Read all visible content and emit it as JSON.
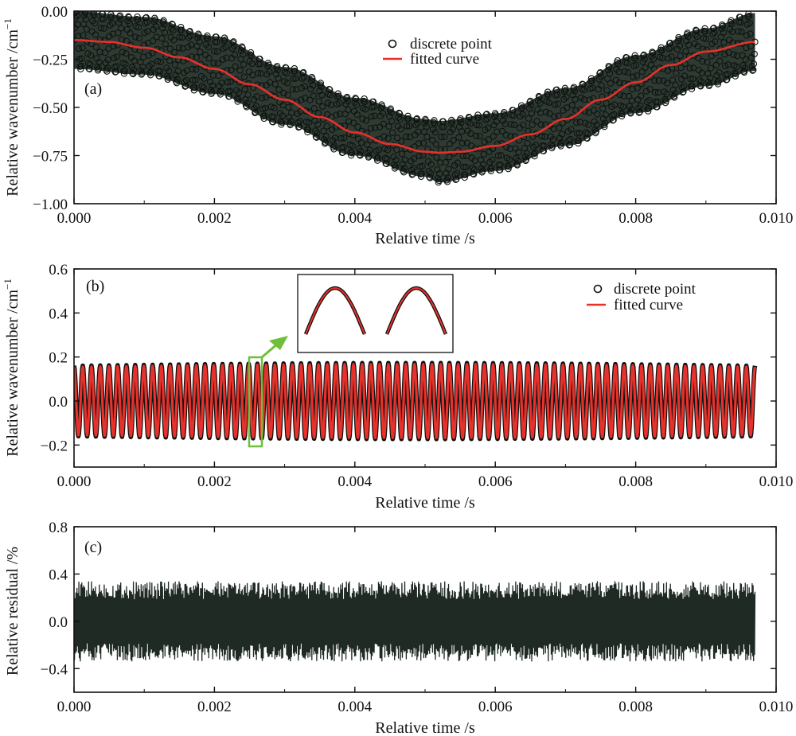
{
  "chart_data": [
    {
      "type": "scatter",
      "panel": "(a)",
      "xlabel": "Relative time /s",
      "ylabel": "Relative wavenumber /cm",
      "ylabel_sup": "−1",
      "xlim": [
        0,
        0.01
      ],
      "ylim": [
        -1.0,
        0.0
      ],
      "xticks": [
        0,
        0.002,
        0.004,
        0.006,
        0.008,
        0.01
      ],
      "xtick_labels": [
        "0.000",
        "0.002",
        "0.004",
        "0.006",
        "0.008",
        "0.010"
      ],
      "yticks": [
        0.0,
        -0.25,
        -0.5,
        -0.75,
        -1.0
      ],
      "ytick_labels": [
        "0.00",
        "−0.25",
        "−0.50",
        "−0.75",
        "−1.00"
      ],
      "legend": [
        "discrete point",
        "fitted curve"
      ],
      "legend_position": "top-center",
      "series": [
        {
          "name": "discrete point",
          "kind": "scatter-band",
          "color": "#1f2a24",
          "x": [
            0,
            0.001,
            0.002,
            0.003,
            0.004,
            0.005,
            0.0052,
            0.006,
            0.007,
            0.008,
            0.009,
            0.0097
          ],
          "y_upper": [
            0.0,
            -0.03,
            -0.13,
            -0.29,
            -0.45,
            -0.56,
            -0.57,
            -0.53,
            -0.4,
            -0.23,
            -0.09,
            -0.01
          ],
          "y_lower": [
            -0.3,
            -0.33,
            -0.43,
            -0.59,
            -0.75,
            -0.86,
            -0.89,
            -0.83,
            -0.7,
            -0.53,
            -0.39,
            -0.31
          ]
        },
        {
          "name": "fitted curve",
          "kind": "line",
          "color": "#e8312b",
          "x": [
            0,
            0.0005,
            0.001,
            0.0015,
            0.002,
            0.0025,
            0.003,
            0.0035,
            0.004,
            0.0045,
            0.005,
            0.0052,
            0.0055,
            0.006,
            0.0065,
            0.007,
            0.0075,
            0.008,
            0.0085,
            0.009,
            0.0097
          ],
          "y": [
            -0.15,
            -0.16,
            -0.19,
            -0.24,
            -0.3,
            -0.38,
            -0.46,
            -0.55,
            -0.63,
            -0.69,
            -0.73,
            -0.735,
            -0.73,
            -0.7,
            -0.64,
            -0.56,
            -0.46,
            -0.37,
            -0.28,
            -0.21,
            -0.16
          ]
        }
      ]
    },
    {
      "type": "line",
      "panel": "(b)",
      "xlabel": "Relative time /s",
      "ylabel": "Relative wavenumber /cm",
      "ylabel_sup": "−1",
      "xlim": [
        0,
        0.01
      ],
      "ylim": [
        -0.3,
        0.6
      ],
      "xticks": [
        0,
        0.002,
        0.004,
        0.006,
        0.008,
        0.01
      ],
      "xtick_labels": [
        "0.000",
        "0.002",
        "0.004",
        "0.006",
        "0.008",
        "0.010"
      ],
      "yticks": [
        -0.2,
        0.0,
        0.2,
        0.4,
        0.6
      ],
      "ytick_labels": [
        "−0.2",
        "0.0",
        "0.2",
        "0.4",
        "0.6"
      ],
      "legend": [
        "discrete point",
        "fitted curve"
      ],
      "legend_position": "top-right",
      "series": [
        {
          "name": "discrete point",
          "kind": "oscillation",
          "color": "#1f2a24",
          "x_start": 0,
          "x_end": 0.0097,
          "amplitude": 0.16,
          "cycles": 78
        },
        {
          "name": "fitted curve",
          "kind": "oscillation",
          "color": "#e8312b",
          "x_start": 0,
          "x_end": 0.0097,
          "amplitude": 0.155,
          "cycles": 78
        }
      ],
      "inset": {
        "description_visible": false,
        "highlight_x": 0.0026,
        "highlight_y": [
          -0.17,
          0.17
        ],
        "color": "#6fbf3a"
      }
    },
    {
      "type": "line",
      "panel": "(c)",
      "xlabel": "Relative time /s",
      "ylabel": "Relative residual /%",
      "xlim": [
        0,
        0.01
      ],
      "ylim": [
        -0.6,
        0.8
      ],
      "xticks": [
        0,
        0.002,
        0.004,
        0.006,
        0.008,
        0.01
      ],
      "xtick_labels": [
        "0.000",
        "0.002",
        "0.004",
        "0.006",
        "0.008",
        "0.010"
      ],
      "yticks": [
        -0.4,
        0.0,
        0.4,
        0.8
      ],
      "ytick_labels": [
        "−0.4",
        "0.0",
        "0.4",
        "0.8"
      ],
      "series": [
        {
          "name": "",
          "kind": "noise",
          "color": "#1f2a24",
          "x_start": 0,
          "x_end": 0.0097,
          "amplitude": 0.34
        }
      ]
    }
  ]
}
